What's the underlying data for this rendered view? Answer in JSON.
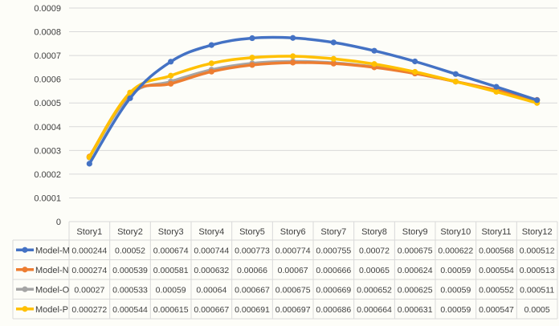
{
  "chart_data": {
    "type": "line",
    "categories": [
      "Story1",
      "Story2",
      "Story3",
      "Story4",
      "Story5",
      "Story6",
      "Story7",
      "Story8",
      "Story9",
      "Story10",
      "Story11",
      "Story12"
    ],
    "ylim": [
      0,
      0.0009
    ],
    "yticks": [
      "0",
      "0.0001",
      "0.0002",
      "0.0003",
      "0.0004",
      "0.0005",
      "0.0006",
      "0.0007",
      "0.0008",
      "0.0009"
    ],
    "grid": true,
    "legend_placement": "left, in data table",
    "series": [
      {
        "name": "Model-M",
        "color": "#4472c4",
        "values": [
          0.000244,
          0.00052,
          0.000674,
          0.000744,
          0.000773,
          0.000774,
          0.000755,
          0.00072,
          0.000675,
          0.000622,
          0.000568,
          0.000512
        ],
        "labels": [
          "0.000244",
          "0.00052",
          "0.000674",
          "0.000744",
          "0.000773",
          "0.000774",
          "0.000755",
          "0.00072",
          "0.000675",
          "0.000622",
          "0.000568",
          "0.000512"
        ]
      },
      {
        "name": "Model-N",
        "color": "#ed7d31",
        "values": [
          0.000274,
          0.000539,
          0.000581,
          0.000632,
          0.00066,
          0.00067,
          0.000666,
          0.00065,
          0.000624,
          0.00059,
          0.000554,
          0.000513
        ],
        "labels": [
          "0.000274",
          "0.000539",
          "0.000581",
          "0.000632",
          "0.00066",
          "0.00067",
          "0.000666",
          "0.00065",
          "0.000624",
          "0.00059",
          "0.000554",
          "0.000513"
        ]
      },
      {
        "name": "Model-O",
        "color": "#a5a5a5",
        "values": [
          0.00027,
          0.000533,
          0.00059,
          0.00064,
          0.000667,
          0.000675,
          0.000669,
          0.000652,
          0.000625,
          0.00059,
          0.000552,
          0.000511
        ],
        "labels": [
          "0.00027",
          "0.000533",
          "0.00059",
          "0.00064",
          "0.000667",
          "0.000675",
          "0.000669",
          "0.000652",
          "0.000625",
          "0.00059",
          "0.000552",
          "0.000511"
        ]
      },
      {
        "name": "Model-P",
        "color": "#ffc000",
        "values": [
          0.000272,
          0.000544,
          0.000615,
          0.000667,
          0.000691,
          0.000697,
          0.000686,
          0.000664,
          0.000631,
          0.00059,
          0.000547,
          0.0005
        ],
        "labels": [
          "0.000272",
          "0.000544",
          "0.000615",
          "0.000667",
          "0.000691",
          "0.000697",
          "0.000686",
          "0.000664",
          "0.000631",
          "0.00059",
          "0.000547",
          "0.0005"
        ]
      }
    ]
  }
}
